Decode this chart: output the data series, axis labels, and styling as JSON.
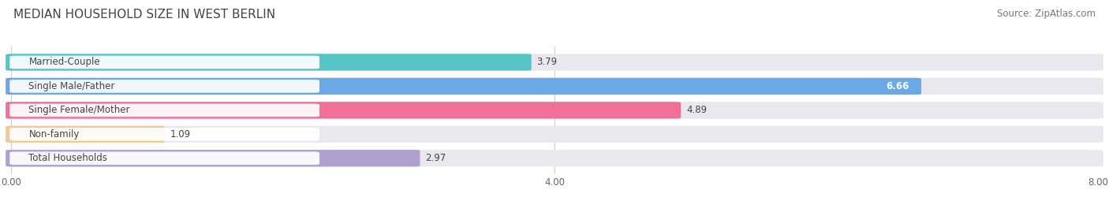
{
  "title": "MEDIAN HOUSEHOLD SIZE IN WEST BERLIN",
  "source": "Source: ZipAtlas.com",
  "categories": [
    "Married-Couple",
    "Single Male/Father",
    "Single Female/Mother",
    "Non-family",
    "Total Households"
  ],
  "values": [
    3.79,
    6.66,
    4.89,
    1.09,
    2.97
  ],
  "bar_colors": [
    "#56c5c5",
    "#6aa8e8",
    "#f07098",
    "#f5c896",
    "#b0a0d0"
  ],
  "bar_bg_color": "#e8e8ee",
  "xlim": [
    0,
    8.0
  ],
  "xticks": [
    0.0,
    4.0,
    8.0
  ],
  "xtick_labels": [
    "0.00",
    "4.00",
    "8.00"
  ],
  "title_fontsize": 11,
  "source_fontsize": 8.5,
  "label_fontsize": 8.5,
  "value_fontsize": 8.5,
  "background_color": "#ffffff",
  "bar_height": 0.62,
  "figsize": [
    14.06,
    2.69
  ],
  "dpi": 100
}
